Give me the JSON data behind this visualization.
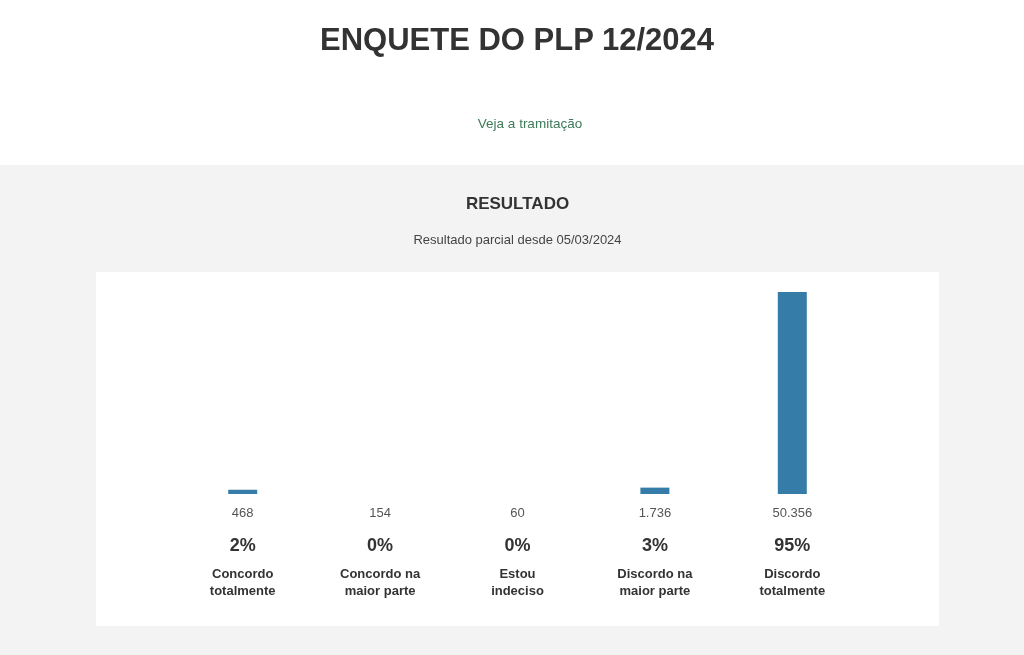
{
  "chart_data": {
    "type": "bar",
    "title": "ENQUETE DO PLP 12/2024",
    "subtitle": "Resultado parcial desde 05/03/2024",
    "categories": [
      "Concordo totalmente",
      "Concordo na maior parte",
      "Estou indeciso",
      "Discordo na maior parte",
      "Discordo totalmente"
    ],
    "values": [
      2,
      0,
      0,
      3,
      95
    ],
    "value_labels": [
      "2%",
      "0%",
      "0%",
      "3%",
      "95%"
    ],
    "color": "#357ca8",
    "annotations": [
      "Veja a tramitação",
      "RESULTADO",
      "468",
      "154",
      "60",
      "1.736",
      "50.356"
    ]
  }
}
